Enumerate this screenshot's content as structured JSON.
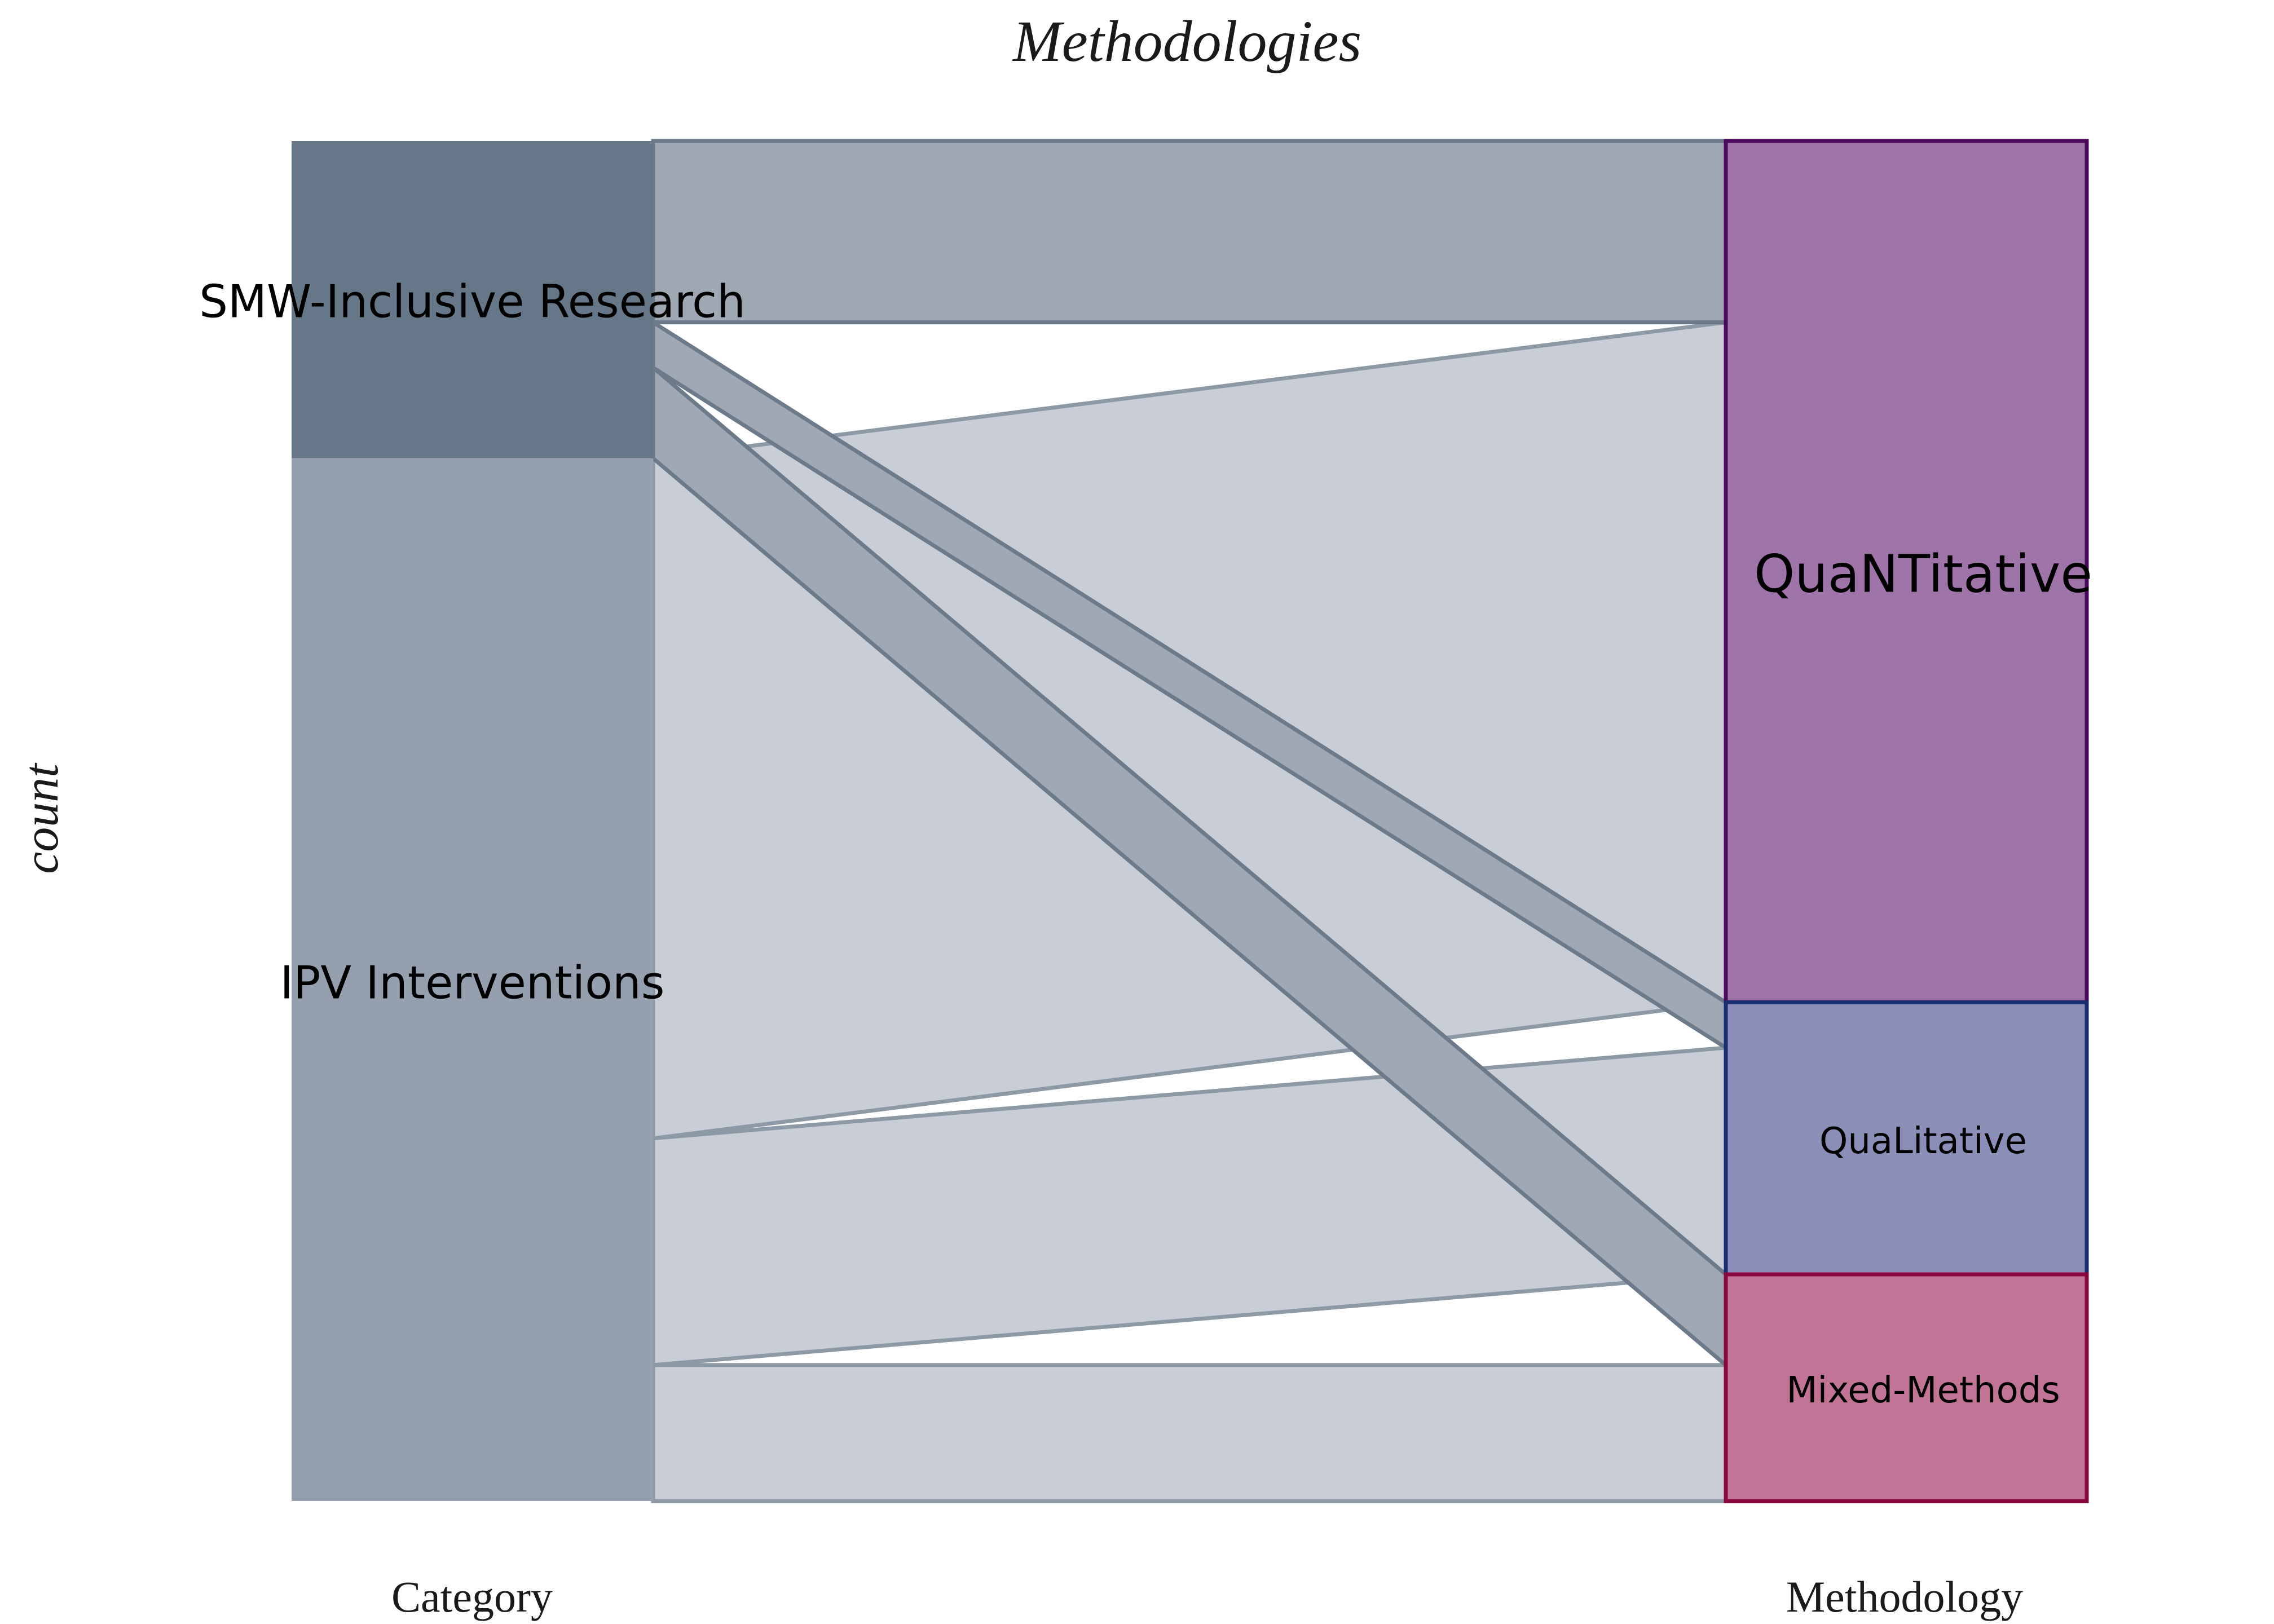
{
  "chart_data": {
    "type": "alluvial",
    "title": "Methodologies",
    "ylabel": "count",
    "axes": [
      "Category",
      "Methodology"
    ],
    "strata": {
      "Category": [
        {
          "name": "SMW-Inclusive Research",
          "value": 7,
          "color": "#667788"
        },
        {
          "name": "IPV Interventions",
          "value": 23,
          "color": "#959fad"
        }
      ],
      "Methodology": [
        {
          "name": "QuaNTitative",
          "value": 19,
          "color": "#9f75a9",
          "border": "#4b0a5d"
        },
        {
          "name": "QuaLitative",
          "value": 6,
          "color": "#8b8fb8",
          "border": "#1b2e72"
        },
        {
          "name": "Mixed-Methods",
          "value": 5,
          "color": "#c27496",
          "border": "#8a0840"
        }
      ]
    },
    "flows": [
      {
        "source": "SMW-Inclusive Research",
        "target": "QuaNTitative",
        "value": 4
      },
      {
        "source": "SMW-Inclusive Research",
        "target": "QuaLitative",
        "value": 1
      },
      {
        "source": "SMW-Inclusive Research",
        "target": "Mixed-Methods",
        "value": 2
      },
      {
        "source": "IPV Interventions",
        "target": "QuaNTitative",
        "value": 15
      },
      {
        "source": "IPV Interventions",
        "target": "QuaLitative",
        "value": 5
      },
      {
        "source": "IPV Interventions",
        "target": "Mixed-Methods",
        "value": 3
      }
    ],
    "flow_colors": {
      "SMW-Inclusive Research": {
        "fill": "#a0a9b3",
        "stroke": "#6c7a8a"
      },
      "IPV Interventions": {
        "fill": "#c9ced6",
        "stroke": "#8e99a6"
      }
    },
    "total": 30
  }
}
